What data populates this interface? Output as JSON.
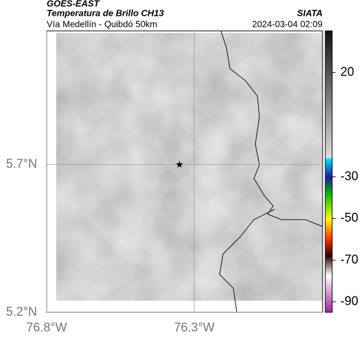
{
  "header": {
    "title": "GOES-EAST",
    "subtitle": "Temperatura de Brillo CH13",
    "region": "Vía Medellín - Quibdó 50km",
    "source": "SIATA",
    "datetime": "2024-03-04 02:09"
  },
  "chart_data": {
    "type": "map",
    "xlim": [
      -76.8,
      -75.865
    ],
    "ylim": [
      5.2,
      6.153
    ],
    "xticks": [
      {
        "value": -76.8,
        "label": "76.8°W"
      },
      {
        "value": -76.3,
        "label": "76.3°W"
      }
    ],
    "yticks": [
      {
        "value": 5.2,
        "label": "5.2°N"
      },
      {
        "value": 5.7,
        "label": "5.7°N"
      }
    ],
    "grid": true,
    "marker": {
      "x": -76.35,
      "y": 5.7
    },
    "colorbar": {
      "lim": [
        -95,
        40
      ],
      "ticks": [
        20,
        -30,
        -50,
        -70,
        -90
      ]
    }
  }
}
